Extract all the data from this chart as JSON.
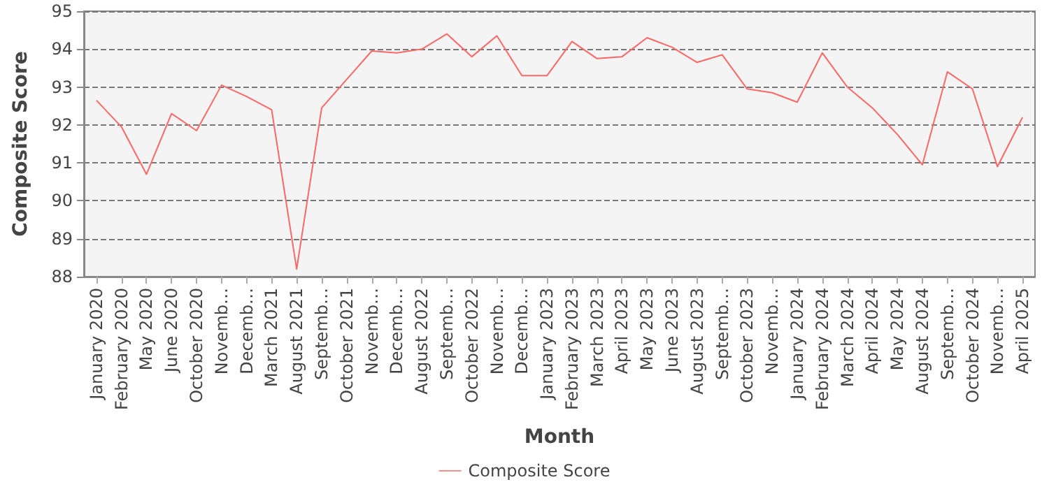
{
  "chart_data": {
    "type": "line",
    "xlabel": "Month",
    "ylabel": "Composite Score",
    "categories": [
      "January 2020",
      "February 2020",
      "May 2020",
      "June 2020",
      "October 2020",
      "Novemb…",
      "Decemb…",
      "March 2021",
      "August 2021",
      "Septemb…",
      "October 2021",
      "Novemb…",
      "Decemb…",
      "August 2022",
      "Septemb…",
      "October 2022",
      "Novemb…",
      "Decemb…",
      "January 2023",
      "February 2023",
      "March 2023",
      "April 2023",
      "May 2023",
      "June 2023",
      "August 2023",
      "Septemb…",
      "October 2023",
      "Novemb…",
      "January 2024",
      "February 2024",
      "March 2024",
      "April 2024",
      "May 2024",
      "August 2024",
      "Septemb…",
      "October 2024",
      "Novemb…",
      "April 2025"
    ],
    "series": [
      {
        "name": "Composite Score",
        "color": "#ff6666",
        "values": [
          92.65,
          91.95,
          90.7,
          92.3,
          91.85,
          93.05,
          92.75,
          92.4,
          88.2,
          92.45,
          93.2,
          93.95,
          93.9,
          94.0,
          94.4,
          93.8,
          94.35,
          93.3,
          93.3,
          94.2,
          93.75,
          93.8,
          94.3,
          94.05,
          93.65,
          93.85,
          92.95,
          92.85,
          92.6,
          93.9,
          93.0,
          92.45,
          91.75,
          90.95,
          93.4,
          92.95,
          90.9,
          92.2
        ]
      }
    ],
    "ylim": [
      88,
      95
    ],
    "yticks": [
      88,
      89,
      90,
      91,
      92,
      93,
      94,
      95
    ],
    "grid": "y",
    "legend": "bottom",
    "marker": "none",
    "line_style": "solid"
  }
}
